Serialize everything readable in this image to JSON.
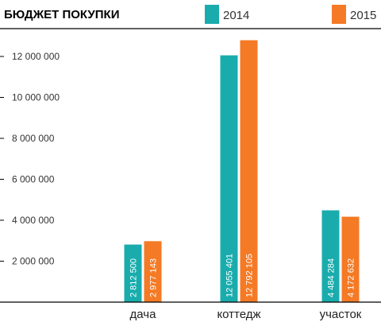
{
  "colors": {
    "series_2014": "#1aacad",
    "series_2015": "#f47a25",
    "axis": "#000000",
    "divider": "#000000"
  },
  "chart_data": {
    "type": "bar",
    "title": "БЮДЖЕТ ПОКУПКИ",
    "categories": [
      "дача",
      "коттедж",
      "участок"
    ],
    "series": [
      {
        "name": "2014",
        "values": [
          2812500,
          12055401,
          4484284
        ],
        "labels": [
          "2 812 500",
          "12 055 401",
          "4 484 284"
        ]
      },
      {
        "name": "2015",
        "values": [
          2977143,
          12792105,
          4172632
        ],
        "labels": [
          "2 977 143",
          "12 792 105",
          "4 172 632"
        ]
      }
    ],
    "yticks": [
      2000000,
      4000000,
      6000000,
      8000000,
      10000000,
      12000000
    ],
    "ytick_labels": [
      "2 000 000",
      "4 000 000",
      "6 000 000",
      "8 000 000",
      "10 000 000",
      "12 000 000"
    ],
    "ylim": [
      0,
      13500000
    ],
    "legend_position": "top-right",
    "grid": false,
    "xlabel": "",
    "ylabel": ""
  }
}
